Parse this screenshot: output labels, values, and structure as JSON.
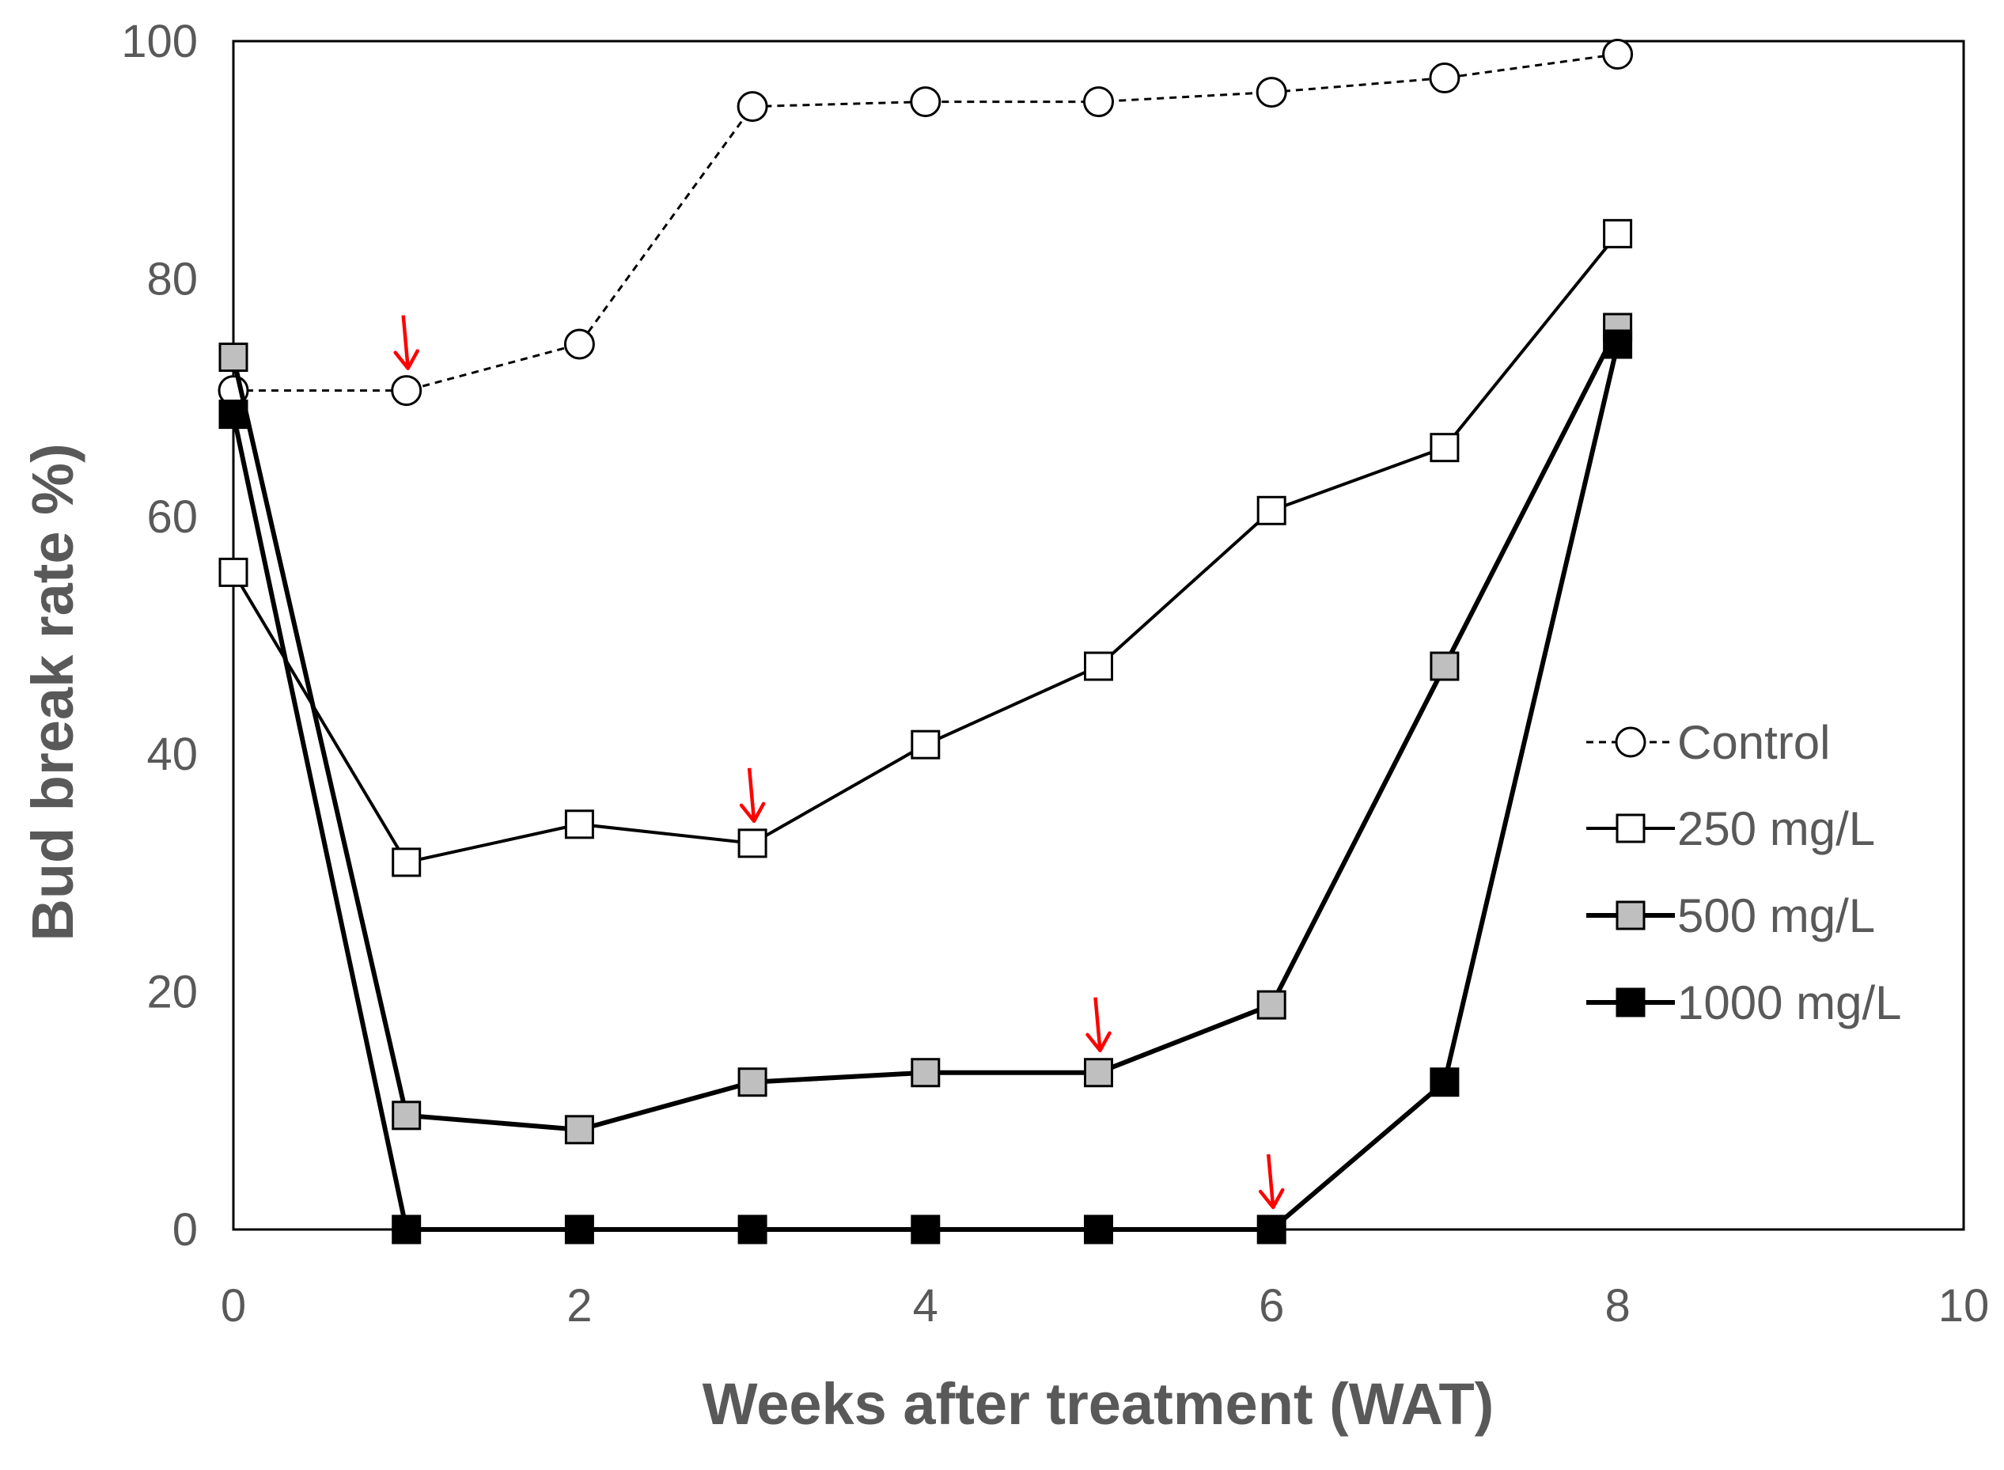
{
  "chart_data": {
    "type": "line",
    "title": "",
    "xlabel": "Weeks after treatment (WAT)",
    "ylabel": "Bud break rate %)",
    "xlim": [
      0,
      10
    ],
    "ylim": [
      0,
      100
    ],
    "xticks": [
      "0",
      "2",
      "4",
      "6",
      "8",
      "10"
    ],
    "yticks": [
      "0",
      "20",
      "40",
      "60",
      "80",
      "100"
    ],
    "grid": false,
    "legend_position": "right-middle",
    "series": [
      {
        "name": "Control",
        "marker": "circle",
        "fill": "#ffffff",
        "line_style": "dashed",
        "x": [
          0,
          1,
          2,
          3,
          4,
          5,
          6,
          7,
          8
        ],
        "values": [
          70.6,
          70.6,
          74.5,
          94.5,
          94.9,
          94.9,
          95.7,
          96.9,
          98.9
        ]
      },
      {
        "name": "250 mg/L",
        "marker": "square",
        "fill": "#ffffff",
        "line_style": "solid",
        "x": [
          0,
          1,
          2,
          3,
          4,
          5,
          6,
          7,
          8
        ],
        "values": [
          55.3,
          30.9,
          34.1,
          32.5,
          40.8,
          47.4,
          60.5,
          65.8,
          83.8
        ]
      },
      {
        "name": "500 mg/L",
        "marker": "square",
        "fill": "#bfbfbf",
        "line_style": "solid",
        "x": [
          0,
          1,
          2,
          3,
          4,
          5,
          6,
          7,
          8
        ],
        "values": [
          73.4,
          9.6,
          8.4,
          12.4,
          13.2,
          13.2,
          18.9,
          47.4,
          75.9
        ]
      },
      {
        "name": "1000 mg/L",
        "marker": "square",
        "fill": "#000000",
        "line_style": "solid",
        "x": [
          0,
          1,
          2,
          3,
          4,
          5,
          6,
          7,
          8
        ],
        "values": [
          68.6,
          0,
          0,
          0,
          0,
          0,
          0,
          12.4,
          74.5
        ]
      }
    ],
    "annotations": [
      {
        "type": "arrow",
        "color": "#ff0000",
        "series": "Control",
        "x": 1
      },
      {
        "type": "arrow",
        "color": "#ff0000",
        "series": "250 mg/L",
        "x": 3
      },
      {
        "type": "arrow",
        "color": "#ff0000",
        "series": "500 mg/L",
        "x": 5
      },
      {
        "type": "arrow",
        "color": "#ff0000",
        "series": "1000 mg/L",
        "x": 6
      }
    ]
  }
}
